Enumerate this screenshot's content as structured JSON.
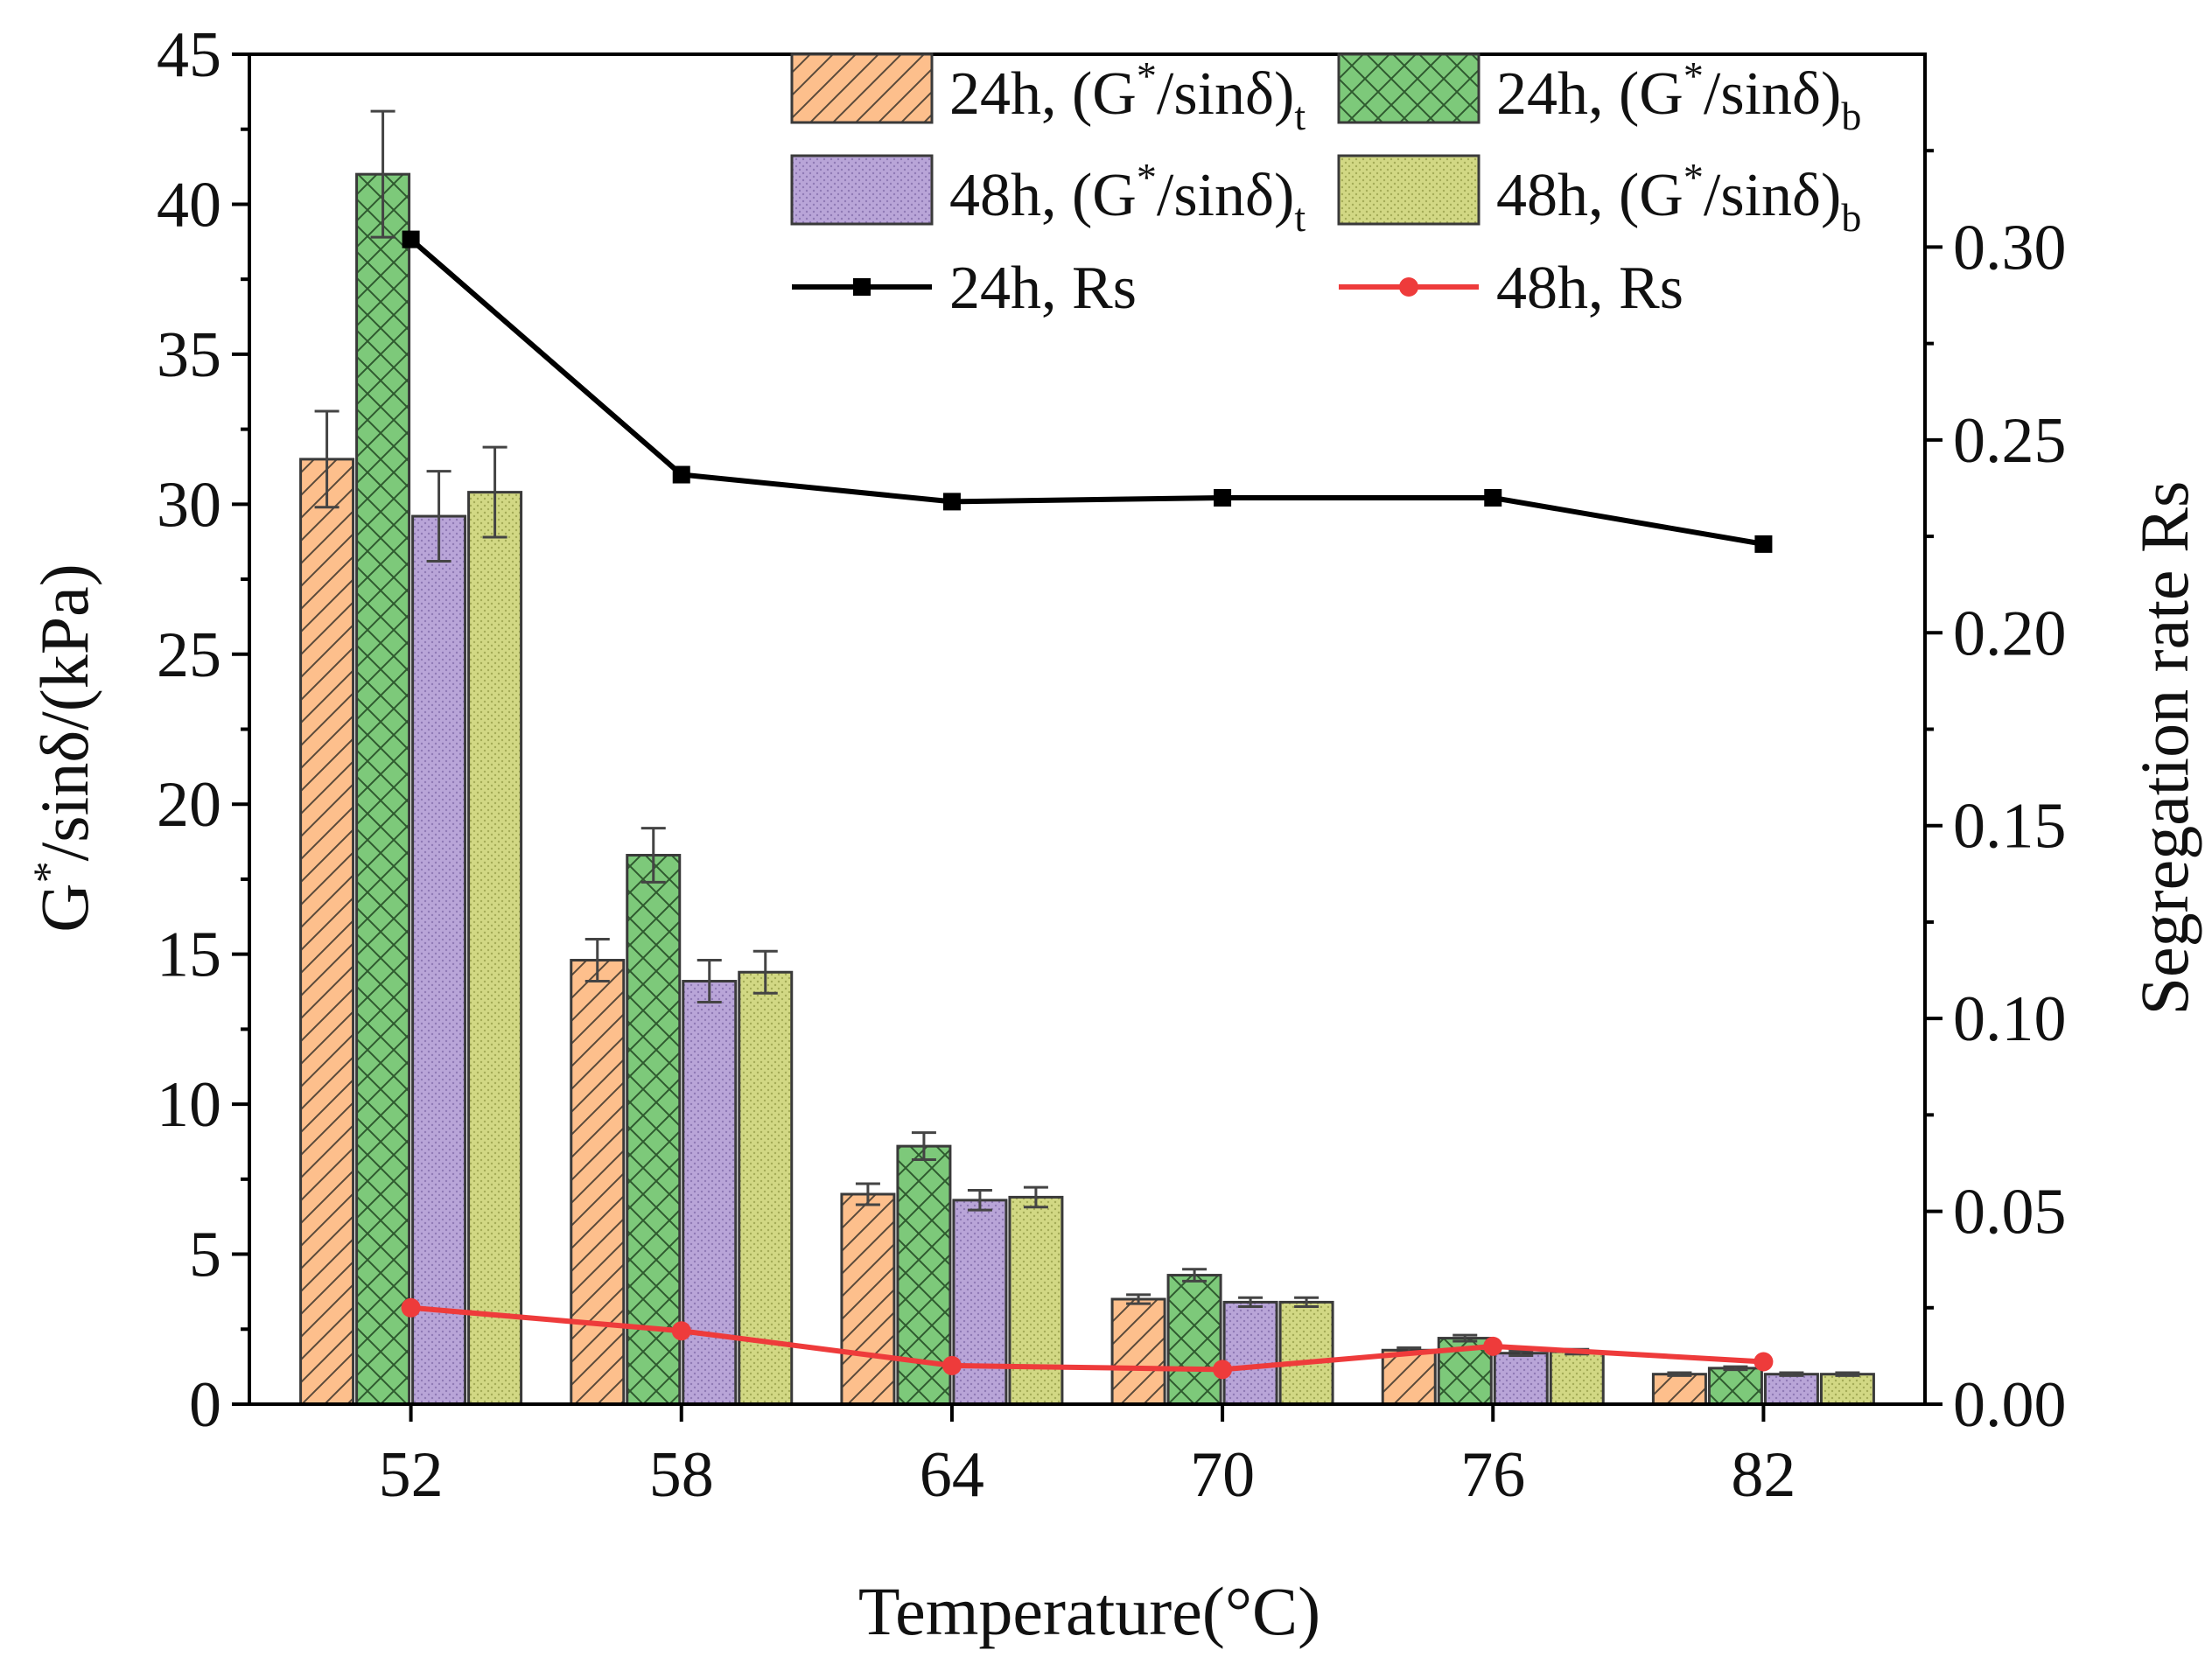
{
  "chart_data": {
    "type": "bar",
    "xlabel": "Temperature(°C)",
    "ylabel": "G*/sinδ/(kPa)",
    "y2label": "Segregation rate Rs",
    "categories": [
      "52",
      "58",
      "64",
      "70",
      "76",
      "82"
    ],
    "ylim": [
      0,
      45
    ],
    "y2lim": [
      0,
      0.35
    ],
    "yticks": [
      0,
      5,
      10,
      15,
      20,
      25,
      30,
      35,
      40,
      45
    ],
    "yticklabels": [
      "0",
      "5",
      "10",
      "15",
      "20",
      "25",
      "30",
      "35",
      "40",
      "45"
    ],
    "y2ticks": [
      0,
      0.05,
      0.1,
      0.15,
      0.2,
      0.25,
      0.3
    ],
    "y2ticklabels": [
      "0.00",
      "0.05",
      "0.10",
      "0.15",
      "0.20",
      "0.25",
      "0.30"
    ],
    "legend_position": "top-right",
    "bar_series": [
      {
        "name": "24h, (G*/sinδ)t",
        "color": "#FDBF8C",
        "pattern": "diagonal-hatch",
        "values": [
          31.5,
          14.8,
          7.0,
          3.5,
          1.8,
          1.0
        ],
        "errors": [
          1.6,
          0.7,
          0.35,
          0.15,
          0.08,
          0.05
        ]
      },
      {
        "name": "24h, (G*/sinδ)b",
        "color": "#7DC97A",
        "pattern": "cross-hatch",
        "values": [
          41.0,
          18.3,
          8.6,
          4.3,
          2.2,
          1.2
        ],
        "errors": [
          2.1,
          0.9,
          0.45,
          0.2,
          0.1,
          0.05
        ]
      },
      {
        "name": "48h, (G*/sinδ)t",
        "color": "#B9A5D8",
        "pattern": "fine-dots",
        "values": [
          29.6,
          14.1,
          6.8,
          3.4,
          1.7,
          1.0
        ],
        "errors": [
          1.5,
          0.7,
          0.33,
          0.15,
          0.08,
          0.05
        ]
      },
      {
        "name": "48h, (G*/sinδ)b",
        "color": "#D2D884",
        "pattern": "fine-dots",
        "values": [
          30.4,
          14.4,
          6.9,
          3.4,
          1.75,
          1.0
        ],
        "errors": [
          1.5,
          0.7,
          0.33,
          0.15,
          0.08,
          0.05
        ]
      }
    ],
    "line_series": [
      {
        "name": "24h, Rs",
        "axis": "right",
        "color": "#000000",
        "marker": "square",
        "values": [
          0.302,
          0.241,
          0.234,
          0.235,
          0.235,
          0.223
        ]
      },
      {
        "name": "48h, Rs",
        "axis": "right",
        "color": "#EE3B3B",
        "marker": "circle",
        "values": [
          0.025,
          0.019,
          0.01,
          0.009,
          0.015,
          0.011
        ]
      }
    ]
  }
}
